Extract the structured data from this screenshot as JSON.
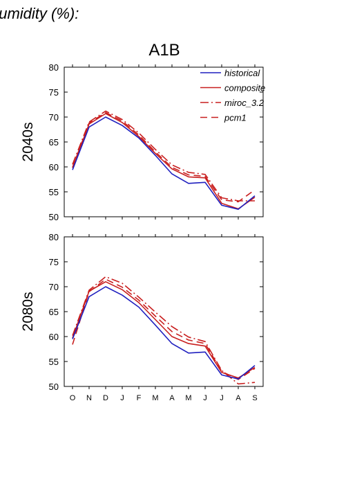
{
  "heading": "humidity (%):",
  "scenario": "A1B",
  "chart_data": {
    "type": "line",
    "categories": [
      "O",
      "N",
      "D",
      "J",
      "F",
      "M",
      "A",
      "M",
      "J",
      "J",
      "A",
      "S"
    ],
    "ylim": [
      50,
      80
    ],
    "yticks": [
      50,
      55,
      60,
      65,
      70,
      75,
      80
    ],
    "legend": {
      "position": "top-right",
      "entries": [
        "historical",
        "composite",
        "miroc_3.2",
        "pcm1"
      ]
    },
    "grid": false,
    "series_styles": {
      "historical": {
        "color": "#1f1fbf",
        "dash": "solid"
      },
      "composite": {
        "color": "#c81e1e",
        "dash": "solid"
      },
      "miroc_3.2": {
        "color": "#c81e1e",
        "dash": "dashdot"
      },
      "pcm1": {
        "color": "#c81e1e",
        "dash": "dash"
      }
    },
    "panels": [
      {
        "row_label": "2040s",
        "series": [
          {
            "name": "historical",
            "values": [
              59.4,
              68.0,
              70.0,
              68.3,
              65.8,
              62.3,
              58.6,
              56.7,
              56.9,
              52.3,
              51.5,
              54.2
            ]
          },
          {
            "name": "composite",
            "values": [
              59.8,
              68.6,
              70.7,
              68.9,
              66.1,
              62.7,
              59.6,
              58.0,
              57.8,
              52.7,
              51.6,
              53.9
            ]
          },
          {
            "name": "miroc_3.2",
            "values": [
              60.5,
              69.0,
              71.2,
              69.5,
              66.8,
              63.5,
              60.4,
              58.9,
              58.5,
              53.8,
              53.2,
              53.2
            ]
          },
          {
            "name": "pcm1",
            "values": [
              59.9,
              68.8,
              70.9,
              69.2,
              66.4,
              63.0,
              59.9,
              58.4,
              58.1,
              53.4,
              53.0,
              55.4
            ]
          }
        ]
      },
      {
        "row_label": "2080s",
        "series": [
          {
            "name": "historical",
            "values": [
              59.5,
              68.0,
              70.0,
              68.3,
              65.9,
              62.3,
              58.6,
              56.7,
              56.9,
              52.3,
              51.5,
              54.2
            ]
          },
          {
            "name": "composite",
            "values": [
              59.7,
              69.1,
              71.0,
              69.4,
              66.8,
              63.4,
              60.0,
              58.6,
              58.1,
              52.8,
              51.7,
              53.8
            ]
          },
          {
            "name": "miroc_3.2",
            "values": [
              60.2,
              69.3,
              72.0,
              70.7,
              67.9,
              64.9,
              62.0,
              59.9,
              59.0,
              53.2,
              50.5,
              50.8
            ]
          },
          {
            "name": "pcm1",
            "values": [
              58.4,
              69.0,
              71.5,
              69.9,
              67.3,
              64.1,
              61.0,
              59.3,
              58.6,
              53.0,
              51.4,
              53.6
            ]
          }
        ]
      }
    ]
  }
}
